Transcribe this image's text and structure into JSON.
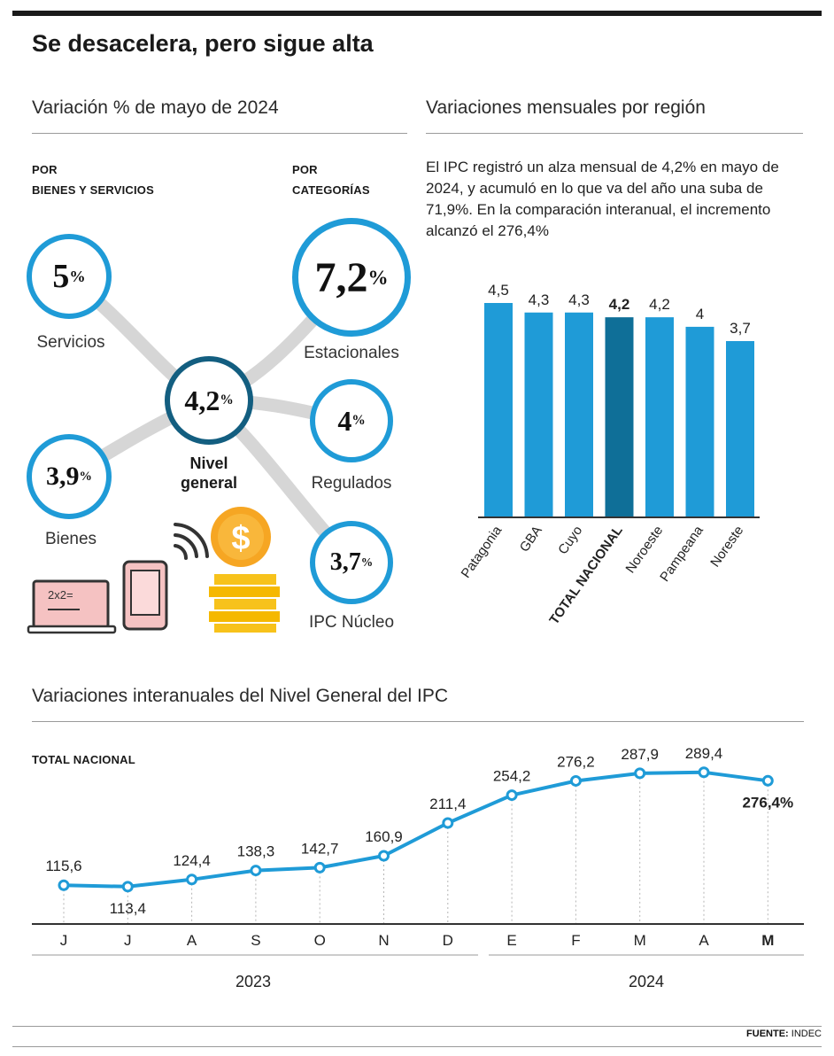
{
  "title": "Se desacelera, pero sigue alta",
  "left_section": {
    "title": "Variación % de mayo de 2024",
    "by_goods_heading": [
      "POR",
      "BIENES Y SERVICIOS"
    ],
    "by_category_heading": [
      "POR",
      "CATEGORÍAS"
    ],
    "center": {
      "value": "4,2",
      "unit": "%",
      "label_line1": "Nivel",
      "label_line2": "general"
    },
    "nodes": [
      {
        "id": "servicios",
        "value": "5",
        "unit": "%",
        "label": "Servicios"
      },
      {
        "id": "bienes",
        "value": "3,9",
        "unit": "%",
        "label": "Bienes"
      },
      {
        "id": "estacionales",
        "value": "7,2",
        "unit": "%",
        "label": "Estacionales"
      },
      {
        "id": "regulados",
        "value": "4",
        "unit": "%",
        "label": "Regulados"
      },
      {
        "id": "nucleo",
        "value": "3,7",
        "unit": "%",
        "label": "IPC Núcleo"
      }
    ],
    "illustration_text": "2x2="
  },
  "right_section": {
    "title": "Variaciones mensuales por región",
    "paragraph": "El IPC registró un alza mensual de 4,2% en mayo de 2024, y acumuló en lo que va del año una suba de 71,9%. En la comparación interanual, el incremento alcanzó el 276,4%"
  },
  "bottom_section": {
    "title": "Variaciones interanuales del Nivel General del IPC",
    "subtitle": "TOTAL NACIONAL"
  },
  "source_label": "FUENTE:",
  "source_value": "INDEC",
  "colors": {
    "accent": "#1f9bd7",
    "highlight": "#0f6f98",
    "center_ring": "#135e80",
    "connector": "#d6d6d6"
  },
  "chart_data": [
    {
      "type": "bar",
      "title": "Variaciones mensuales por región",
      "categories": [
        "Patagonia",
        "GBA",
        "Cuyo",
        "TOTAL NACIONAL",
        "Noroeste",
        "Pampeana",
        "Noreste"
      ],
      "values": [
        4.5,
        4.3,
        4.3,
        4.2,
        4.2,
        4.0,
        3.7
      ],
      "value_labels": [
        "4,5",
        "4,3",
        "4,3",
        "4,2",
        "4,2",
        "4",
        "3,7"
      ],
      "highlight": "TOTAL NACIONAL",
      "ylim": [
        0,
        4.5
      ],
      "xlabel": "",
      "ylabel": ""
    },
    {
      "type": "line",
      "title": "Variaciones interanuales del Nivel General del IPC",
      "x": [
        "J",
        "J",
        "A",
        "S",
        "O",
        "N",
        "D",
        "E",
        "F",
        "M",
        "A",
        "M"
      ],
      "values": [
        115.6,
        113.4,
        124.4,
        138.3,
        142.7,
        160.9,
        211.4,
        254.2,
        276.2,
        287.9,
        289.4,
        276.4
      ],
      "value_labels": [
        "115,6",
        "113,4",
        "124,4",
        "138,3",
        "142,7",
        "160,9",
        "211,4",
        "254,2",
        "276,2",
        "287,9",
        "289,4",
        "276,4%"
      ],
      "years": [
        "2023",
        "2024"
      ],
      "series_name": "TOTAL NACIONAL",
      "ylim": [
        60,
        300
      ]
    }
  ]
}
